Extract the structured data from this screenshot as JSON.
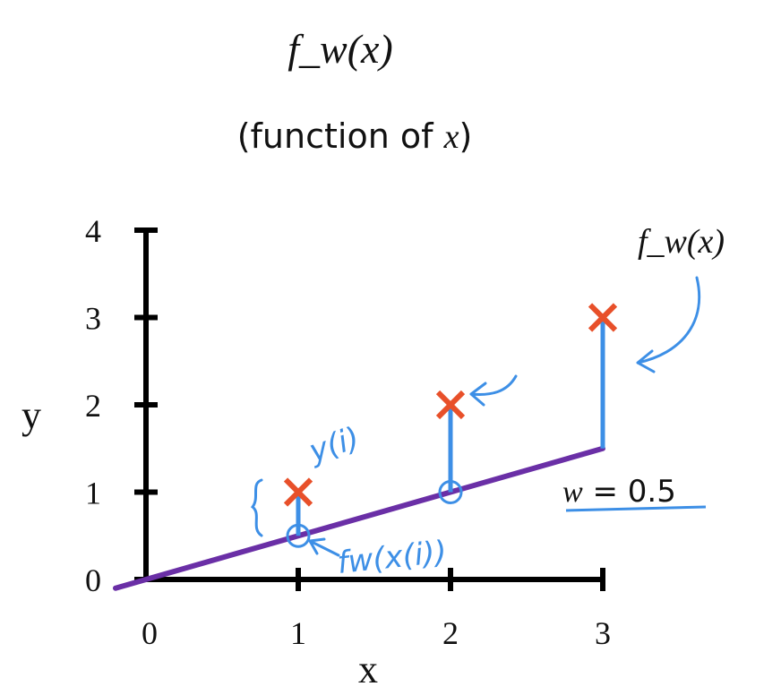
{
  "header": {
    "formula": "f_w(x)",
    "subtitle_prefix": "(function of ",
    "subtitle_var": "x",
    "subtitle_suffix": ")"
  },
  "annotations": {
    "fw_label": "f_w(x)",
    "w_label_var": "w",
    "w_label_rest": " = 0.5",
    "y_i": "y(i)",
    "fw_xi": "fw(x(i))"
  },
  "colors": {
    "axis": "#000000",
    "model_line": "#6a2fa6",
    "data_marker": "#e8502a",
    "annotation": "#3d8fe6"
  },
  "chart_data": {
    "type": "scatter",
    "xlabel": "x",
    "ylabel": "y",
    "xlim": [
      0,
      3
    ],
    "ylim": [
      0,
      4
    ],
    "xticks": [
      0,
      1,
      2,
      3
    ],
    "yticks": [
      0,
      1,
      2,
      3,
      4
    ],
    "points": [
      {
        "x": 1,
        "y": 1
      },
      {
        "x": 2,
        "y": 2
      },
      {
        "x": 3,
        "y": 3
      }
    ],
    "model_line": {
      "w": 0.5,
      "b": 0,
      "x_from": -0.2,
      "x_to": 3
    },
    "predictions": [
      {
        "x": 1,
        "y": 0.5
      },
      {
        "x": 2,
        "y": 1.0
      },
      {
        "x": 3,
        "y": 1.5
      }
    ]
  }
}
